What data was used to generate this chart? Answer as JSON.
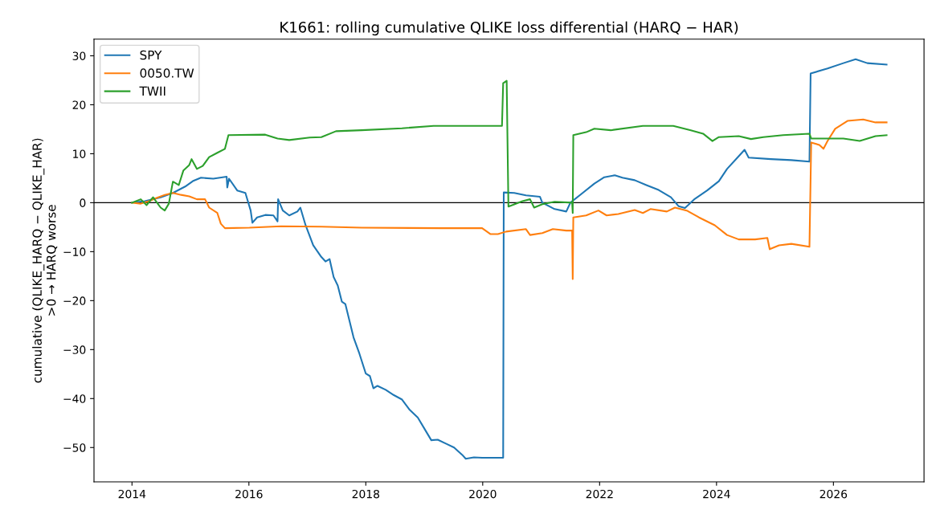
{
  "chart_data": {
    "type": "line",
    "title": "K1661: rolling cumulative QLIKE loss differential (HARQ − HAR)",
    "ylabel": "cumulative (QLIKE_HARQ − QLIKE_HAR)\n>0 → HARQ worse",
    "xlim": [
      2013.35,
      2027.55
    ],
    "ylim": [
      -57.0,
      33.4
    ],
    "xticks": [
      2014,
      2016,
      2018,
      2020,
      2022,
      2024,
      2026
    ],
    "yticks": [
      {
        "value": -50,
        "label": "−50"
      },
      {
        "value": -40,
        "label": "−40"
      },
      {
        "value": -30,
        "label": "−30"
      },
      {
        "value": -20,
        "label": "−20"
      },
      {
        "value": -10,
        "label": "−10"
      },
      0,
      10,
      20,
      30
    ],
    "grid": false,
    "legend": "top left",
    "line_style": "solid",
    "marker": "none",
    "ref_lines": [
      {
        "axis": "y",
        "value": 0,
        "color": "#000000",
        "line_style": "solid"
      }
    ],
    "series": [
      {
        "name": "SPY",
        "color": "#1f77b4",
        "x": [
          2014.0,
          2014.22,
          2014.49,
          2014.7,
          2014.91,
          2015.04,
          2015.18,
          2015.39,
          2015.62,
          2015.63,
          2015.66,
          2015.8,
          2015.94,
          2016.03,
          2016.06,
          2016.14,
          2016.28,
          2016.42,
          2016.49,
          2016.5,
          2016.58,
          2016.69,
          2016.83,
          2016.88,
          2016.97,
          2017.1,
          2017.24,
          2017.31,
          2017.38,
          2017.45,
          2017.52,
          2017.59,
          2017.65,
          2017.79,
          2017.89,
          2018.0,
          2018.07,
          2018.13,
          2018.2,
          2018.34,
          2018.48,
          2018.62,
          2018.75,
          2018.89,
          2019.03,
          2019.12,
          2019.23,
          2019.37,
          2019.51,
          2019.65,
          2019.71,
          2019.85,
          2019.99,
          2020.35,
          2020.36,
          2020.54,
          2020.74,
          2020.98,
          2021.02,
          2021.23,
          2021.43,
          2021.5,
          2021.71,
          2021.91,
          2022.08,
          2022.26,
          2022.39,
          2022.6,
          2022.8,
          2023.01,
          2023.22,
          2023.35,
          2023.46,
          2023.63,
          2023.84,
          2024.04,
          2024.18,
          2024.38,
          2024.48,
          2024.55,
          2024.93,
          2025.28,
          2025.59,
          2025.61,
          2025.9,
          2026.17,
          2026.38,
          2026.58,
          2026.91
        ],
        "values": [
          0,
          0.3,
          1.1,
          2.0,
          3.3,
          4.4,
          5.1,
          4.9,
          5.3,
          3.1,
          4.9,
          2.5,
          2.0,
          -1.6,
          -4.1,
          -3.0,
          -2.5,
          -2.6,
          -3.8,
          0.7,
          -1.6,
          -2.6,
          -1.8,
          -1.0,
          -4.6,
          -8.7,
          -11.1,
          -12.0,
          -11.5,
          -15.2,
          -16.9,
          -20.2,
          -20.7,
          -27.5,
          -30.8,
          -34.9,
          -35.4,
          -37.9,
          -37.4,
          -38.2,
          -39.3,
          -40.2,
          -42.3,
          -43.9,
          -46.7,
          -48.5,
          -48.4,
          -49.2,
          -50.0,
          -51.5,
          -52.3,
          -52.0,
          -52.1,
          -52.1,
          2.1,
          2.0,
          1.5,
          1.2,
          0.0,
          -1.3,
          -1.8,
          0.0,
          2.0,
          3.9,
          5.2,
          5.6,
          5.1,
          4.6,
          3.6,
          2.6,
          1.1,
          -0.7,
          -1.1,
          0.8,
          2.5,
          4.4,
          6.9,
          9.5,
          10.8,
          9.2,
          8.9,
          8.7,
          8.4,
          26.4,
          27.4,
          28.5,
          29.3,
          28.5,
          28.2
        ]
      },
      {
        "name": "0050.TW",
        "color": "#ff7f0e",
        "x": [
          2014.0,
          2014.15,
          2014.29,
          2014.43,
          2014.56,
          2014.7,
          2014.84,
          2014.98,
          2015.11,
          2015.25,
          2015.32,
          2015.46,
          2015.52,
          2015.59,
          2016.01,
          2016.55,
          2017.24,
          2017.93,
          2019.3,
          2019.99,
          2020.13,
          2020.26,
          2020.4,
          2020.74,
          2020.81,
          2021.02,
          2021.2,
          2021.43,
          2021.53,
          2021.54,
          2021.55,
          2021.77,
          2021.98,
          2022.12,
          2022.32,
          2022.6,
          2022.74,
          2022.87,
          2023.15,
          2023.29,
          2023.49,
          2023.7,
          2023.97,
          2024.18,
          2024.38,
          2024.66,
          2024.87,
          2024.91,
          2025.07,
          2025.28,
          2025.59,
          2025.62,
          2025.76,
          2025.83,
          2025.9,
          2026.03,
          2026.24,
          2026.51,
          2026.72,
          2026.91
        ],
        "values": [
          0,
          -0.2,
          0.3,
          1.0,
          1.6,
          2.0,
          1.6,
          1.3,
          0.7,
          0.7,
          -1.0,
          -2.1,
          -4.3,
          -5.2,
          -5.1,
          -4.8,
          -4.9,
          -5.1,
          -5.2,
          -5.2,
          -6.4,
          -6.4,
          -5.9,
          -5.4,
          -6.6,
          -6.2,
          -5.4,
          -5.7,
          -5.7,
          -15.6,
          -3.0,
          -2.6,
          -1.6,
          -2.6,
          -2.3,
          -1.5,
          -2.1,
          -1.3,
          -1.8,
          -1.0,
          -1.6,
          -3.0,
          -4.6,
          -6.6,
          -7.5,
          -7.5,
          -7.2,
          -9.5,
          -8.7,
          -8.4,
          -9.0,
          12.3,
          11.8,
          11.0,
          12.6,
          15.1,
          16.7,
          17.0,
          16.4,
          16.4
        ]
      },
      {
        "name": "TWII",
        "color": "#2ca02c",
        "x": [
          2014.0,
          2014.15,
          2014.25,
          2014.36,
          2014.49,
          2014.56,
          2014.63,
          2014.7,
          2014.8,
          2014.88,
          2014.98,
          2015.02,
          2015.11,
          2015.21,
          2015.32,
          2015.46,
          2015.59,
          2015.65,
          2016.28,
          2016.49,
          2016.69,
          2017.04,
          2017.24,
          2017.49,
          2017.93,
          2018.62,
          2019.16,
          2020.33,
          2020.35,
          2020.41,
          2020.44,
          2020.68,
          2020.81,
          2020.88,
          2021.02,
          2021.23,
          2021.53,
          2021.54,
          2021.55,
          2021.77,
          2021.91,
          2022.19,
          2022.74,
          2023.26,
          2023.56,
          2023.77,
          2023.93,
          2024.04,
          2024.38,
          2024.59,
          2024.8,
          2025.14,
          2025.59,
          2025.62,
          2026.17,
          2026.45,
          2026.72,
          2026.91
        ],
        "values": [
          0,
          0.7,
          -0.5,
          1.1,
          -1.0,
          -1.6,
          -0.2,
          4.3,
          3.6,
          6.6,
          7.7,
          8.9,
          6.9,
          7.5,
          9.3,
          10.2,
          11.0,
          13.8,
          13.9,
          13.1,
          12.8,
          13.3,
          13.4,
          14.6,
          14.8,
          15.2,
          15.7,
          15.7,
          24.4,
          24.9,
          -0.8,
          0.3,
          0.7,
          -1.0,
          -0.3,
          0.2,
          0.0,
          -2.1,
          13.8,
          14.4,
          15.1,
          14.8,
          15.7,
          15.7,
          14.8,
          14.1,
          12.6,
          13.4,
          13.6,
          13.0,
          13.4,
          13.8,
          14.1,
          13.1,
          13.1,
          12.6,
          13.6,
          13.8
        ]
      }
    ]
  }
}
